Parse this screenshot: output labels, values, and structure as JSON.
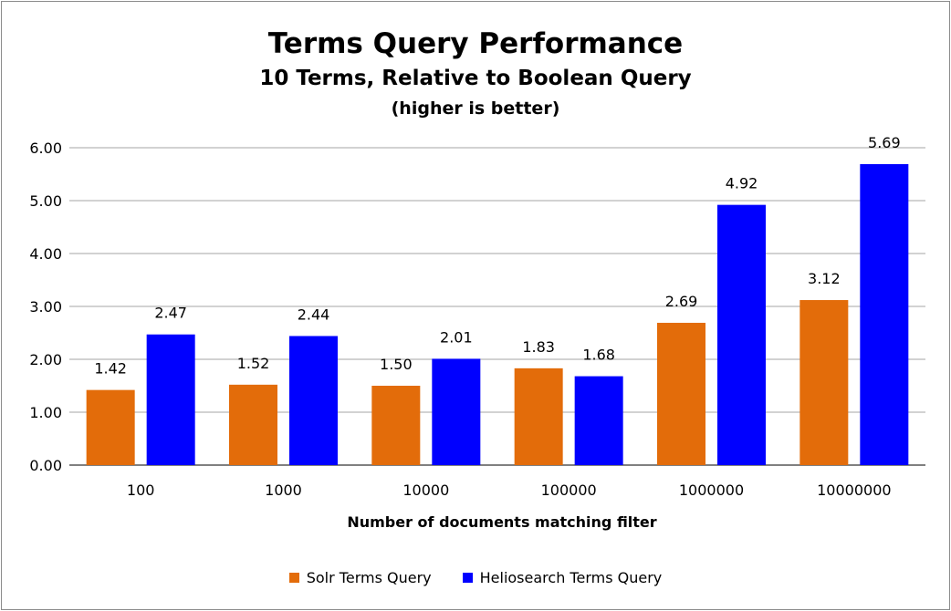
{
  "chart_data": {
    "type": "bar",
    "title": "Terms Query Performance",
    "subtitle": "10 Terms, Relative to Boolean Query",
    "note": "(higher is better)",
    "xlabel": "Number of documents matching filter",
    "ylabel": "",
    "categories": [
      "100",
      "1000",
      "10000",
      "100000",
      "1000000",
      "10000000"
    ],
    "series": [
      {
        "name": "Solr Terms Query",
        "color": "#e36c0a",
        "values": [
          1.42,
          1.52,
          1.5,
          1.83,
          2.69,
          3.12
        ],
        "labels": [
          "1.42",
          "1.52",
          "1.50",
          "1.83",
          "2.69",
          "3.12"
        ]
      },
      {
        "name": "Heliosearch Terms Query",
        "color": "#0000ff",
        "values": [
          2.47,
          2.44,
          2.01,
          1.68,
          4.92,
          5.69
        ],
        "labels": [
          "2.47",
          "2.44",
          "2.01",
          "1.68",
          "4.92",
          "5.69"
        ]
      }
    ],
    "ylim": [
      0,
      6
    ],
    "yticks": [
      "0.00",
      "1.00",
      "2.00",
      "3.00",
      "4.00",
      "5.00",
      "6.00"
    ],
    "grid": true,
    "legend_position": "bottom"
  }
}
